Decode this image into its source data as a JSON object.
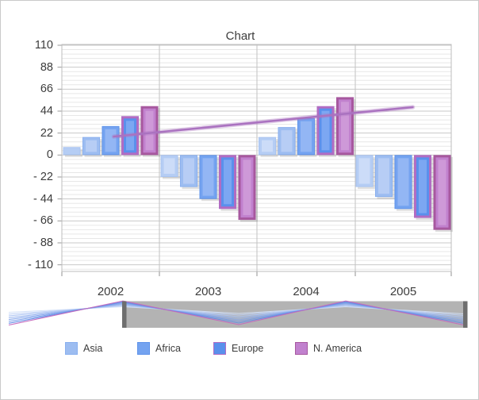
{
  "chart": {
    "title": "Chart",
    "y_axis": {
      "tick_labels": [
        "110",
        "88",
        "66",
        "44",
        "22",
        "0",
        "- 22",
        "- 44",
        "- 66",
        "- 88",
        "- 110"
      ]
    },
    "x_axis": {
      "tick_labels": [
        "2002",
        "2003",
        "2004",
        "2005"
      ]
    }
  },
  "chart_data": {
    "type": "bar",
    "categories": [
      "2002",
      "2003",
      "2004",
      "2005"
    ],
    "ylim": [
      -110,
      110
    ],
    "y_major_step": 22,
    "y_minor_divisions": 5,
    "legend_position": "bottom",
    "series": [
      {
        "legend_label": null,
        "fill": "#b5cdf4",
        "inner": "#ccdcf8",
        "edge": "#a9c4f1",
        "edge_width": 1,
        "values": [
          8,
          -22,
          18,
          -32
        ]
      },
      {
        "legend_label": "Asia",
        "fill": "#9dbdf1",
        "inner": "#b7cdf5",
        "edge": "#8ab0ef",
        "edge_width": 1,
        "values": [
          18,
          -32,
          28,
          -42
        ]
      },
      {
        "legend_label": "Africa",
        "fill": "#74a3f0",
        "inner": "#93b6f4",
        "edge": "#5f93ea",
        "edge_width": 1,
        "values": [
          29,
          -44,
          37,
          -54
        ]
      },
      {
        "legend_label": "Europe",
        "fill": "#5a90ec",
        "inner": "#7ca7f2",
        "edge": "#b16cc3",
        "edge_width": 3,
        "values": [
          39,
          -54,
          49,
          -63
        ]
      },
      {
        "legend_label": "N. America",
        "fill": "#c181ce",
        "inner": "#ce99d8",
        "edge": "#a7589f",
        "edge_width": 3,
        "values": [
          49,
          -65,
          58,
          -75
        ]
      }
    ],
    "trend_line": {
      "color": "#aa72c0",
      "start_year": "2002",
      "start_value": 18.5,
      "end_year": "2005",
      "end_value": 48
    }
  },
  "range_control": {
    "selected_background": "#b3b3b3",
    "unselected_background": "#ffffff",
    "handle_color": "#6e6e6e",
    "preview_line_colors": [
      "#d3e0f8",
      "#c0d2f5",
      "#adc4f2",
      "#9ab6ef",
      "#87a8ec",
      "#749ae9",
      "#618ce6",
      "#c468bd"
    ]
  }
}
